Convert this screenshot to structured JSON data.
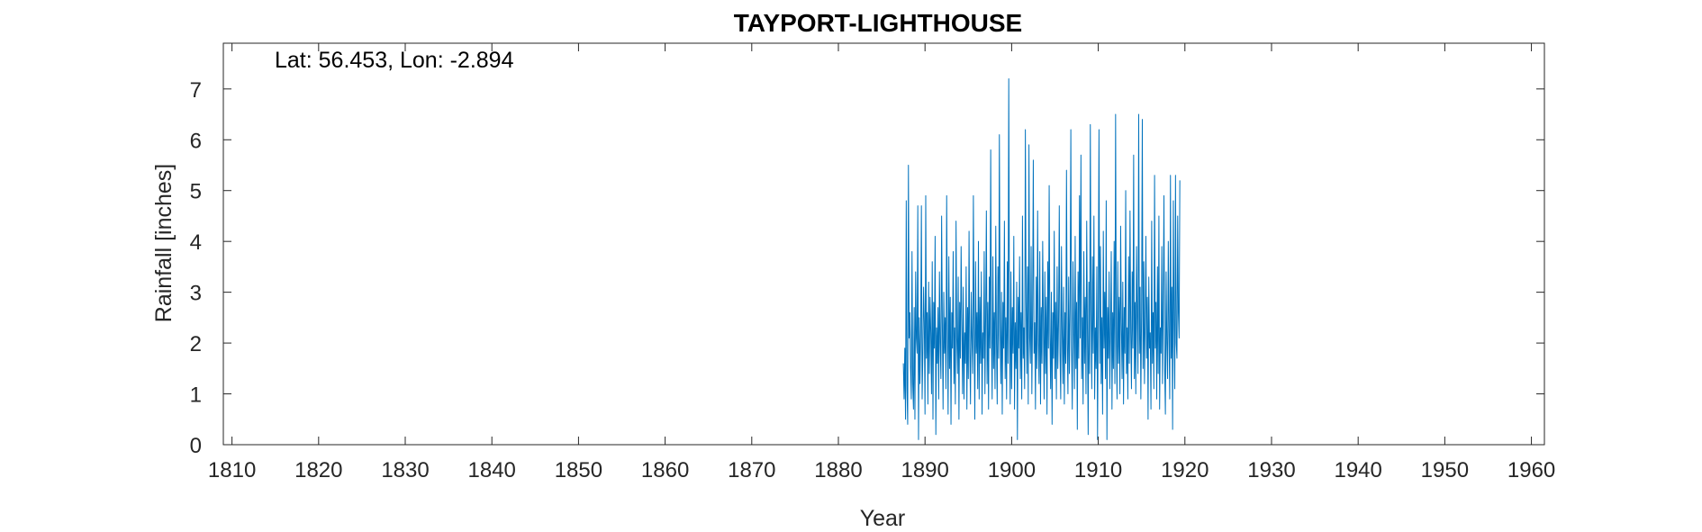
{
  "colors": {
    "series": "#0072BD",
    "axis": "#262626",
    "background": "#ffffff"
  },
  "chart_data": {
    "type": "line",
    "title": "TAYPORT-LIGHTHOUSE",
    "annotation": "Lat: 56.453, Lon: -2.894",
    "xlabel": "Year",
    "ylabel": "Rainfall [inches]",
    "xlim": [
      1809,
      1961.5
    ],
    "ylim": [
      0,
      7.9
    ],
    "xticks": [
      1810,
      1820,
      1830,
      1840,
      1850,
      1860,
      1870,
      1880,
      1890,
      1900,
      1910,
      1920,
      1930,
      1940,
      1950,
      1960
    ],
    "yticks": [
      0,
      1,
      2,
      3,
      4,
      5,
      6,
      7
    ],
    "grid": false,
    "series": [
      {
        "x_start": 1887.5,
        "x_step": 0.08333,
        "values": [
          1.6,
          0.9,
          1.9,
          0.5,
          4.8,
          1.1,
          0.4,
          5.5,
          2.1,
          2.6,
          1.5,
          0.9,
          3.8,
          1.2,
          0.7,
          2.7,
          0.5,
          3.4,
          2.1,
          1.8,
          4.7,
          0.1,
          2.5,
          1.2,
          2.2,
          4.7,
          0.9,
          1.8,
          3.1,
          2.4,
          0.6,
          4.9,
          1.7,
          2.6,
          0.8,
          3.2,
          1.4,
          2.9,
          2.2,
          1.0,
          3.6,
          0.5,
          2.8,
          1.9,
          4.1,
          0.2,
          2.3,
          1.6,
          2.7,
          0.9,
          3.4,
          2.0,
          1.3,
          4.5,
          2.4,
          0.7,
          3.0,
          1.8,
          2.5,
          1.1,
          4.9,
          2.2,
          0.6,
          3.7,
          1.5,
          2.9,
          0.4,
          2.6,
          1.9,
          3.8,
          1.2,
          2.3,
          0.8,
          4.4,
          2.1,
          1.4,
          3.3,
          0.5,
          2.8,
          1.7,
          3.9,
          2.4,
          1.0,
          3.1,
          0.9,
          2.2,
          1.6,
          3.5,
          0.7,
          2.7,
          1.3,
          4.2,
          1.9,
          0.8,
          3.0,
          2.1,
          1.4,
          4.9,
          2.3,
          0.5,
          3.6,
          1.8,
          2.6,
          1.1,
          4.0,
          0.9,
          2.9,
          1.6,
          3.4,
          0.6,
          2.2,
          1.7,
          3.8,
          1.0,
          2.5,
          4.6,
          1.2,
          2.8,
          0.7,
          3.3,
          1.9,
          5.8,
          2.2,
          0.9,
          3.7,
          1.5,
          2.6,
          1.1,
          4.3,
          2.0,
          0.8,
          3.5,
          1.7,
          6.1,
          2.4,
          1.2,
          3.0,
          0.6,
          2.8,
          1.9,
          4.4,
          1.3,
          2.5,
          0.9,
          3.6,
          1.6,
          7.2,
          2.3,
          0.8,
          3.4,
          1.1,
          2.7,
          1.8,
          4.1,
          0.7,
          2.4,
          1.5,
          3.2,
          0.1,
          2.9,
          1.9,
          3.7,
          1.3,
          2.6,
          0.9,
          4.5,
          1.7,
          2.3,
          1.1,
          6.2,
          2.8,
          1.4,
          3.5,
          0.8,
          5.9,
          2.1,
          1.6,
          3.9,
          1.0,
          2.6,
          5.6,
          1.8,
          2.4,
          0.7,
          3.3,
          1.5,
          4.6,
          2.0,
          1.2,
          3.8,
          0.8,
          2.7,
          1.6,
          4.0,
          2.3,
          0.9,
          3.4,
          1.4,
          2.9,
          0.6,
          3.6,
          1.9,
          5.1,
          2.2,
          1.1,
          3.0,
          0.4,
          2.6,
          1.7,
          4.2,
          1.3,
          2.8,
          0.9,
          3.5,
          1.5,
          2.4,
          4.7,
          1.8,
          0.9,
          3.9,
          2.2,
          1.2,
          3.1,
          0.8,
          2.6,
          1.6,
          5.4,
          2.0,
          1.0,
          3.3,
          1.4,
          2.7,
          6.2,
          1.9,
          0.7,
          3.6,
          2.3,
          1.1,
          4.1,
          1.5,
          2.8,
          0.3,
          3.4,
          1.7,
          4.9,
          2.1,
          5.7,
          1.3,
          2.5,
          0.8,
          3.8,
          1.6,
          2.9,
          1.0,
          4.4,
          2.2,
          0.2,
          3.2,
          1.4,
          6.3,
          2.6,
          1.1,
          3.7,
          1.8,
          4.5,
          0.9,
          2.3,
          1.5,
          3.5,
          0.1,
          2.8,
          6.2,
          1.6,
          3.9,
          1.2,
          2.5,
          0.6,
          4.2,
          1.9,
          3.0,
          1.3,
          4.8,
          0.1,
          2.7,
          1.7,
          3.4,
          1.1,
          2.2,
          3.8,
          0.7,
          2.6,
          1.5,
          4.0,
          1.2,
          6.5,
          2.1,
          0.9,
          3.6,
          1.6,
          2.9,
          1.0,
          4.3,
          2.4,
          1.3,
          3.2,
          0.8,
          2.7,
          1.8,
          5.0,
          1.4,
          2.3,
          0.9,
          3.7,
          1.6,
          4.6,
          2.2,
          1.1,
          3.4,
          1.9,
          5.7,
          1.3,
          2.8,
          1.0,
          3.9,
          2.5,
          1.4,
          6.5,
          1.8,
          3.1,
          0.9,
          2.6,
          6.4,
          1.5,
          3.6,
          1.2,
          2.4,
          4.1,
          1.7,
          2.9,
          0.5,
          3.3,
          1.9,
          2.2,
          0.7,
          4.4,
          1.6,
          2.6,
          1.1,
          5.3,
          1.9,
          2.8,
          0.9,
          3.5,
          1.4,
          4.5,
          0.7,
          2.3,
          1.8,
          3.9,
          1.2,
          2.7,
          4.9,
          1.5,
          0.6,
          3.4,
          2.0,
          1.3,
          4.0,
          2.2,
          0.9,
          5.3,
          1.7,
          3.1,
          0.3,
          4.8,
          2.4,
          1.1,
          5.3,
          2.0,
          1.7,
          4.5,
          2.6,
          2.1,
          5.2
        ]
      }
    ]
  }
}
